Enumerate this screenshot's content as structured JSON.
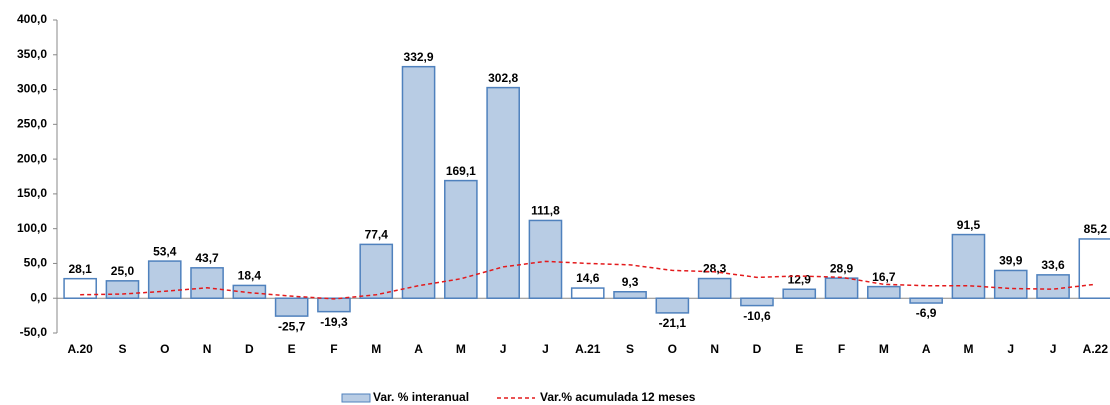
{
  "chart_data": {
    "type": "bar",
    "categories": [
      "A.20",
      "S",
      "O",
      "N",
      "D",
      "E",
      "F",
      "M",
      "A",
      "M",
      "J",
      "J",
      "A.21",
      "S",
      "O",
      "N",
      "D",
      "E",
      "F",
      "M",
      "A",
      "M",
      "J",
      "J",
      "A.22"
    ],
    "series": [
      {
        "name": "Var. % interanual",
        "type": "bar",
        "color": "#b8cce4",
        "stroke": "#4f81bd",
        "colors": [
          "#ffffff",
          "#b8cce4",
          "#b8cce4",
          "#b8cce4",
          "#b8cce4",
          "#b8cce4",
          "#b8cce4",
          "#b8cce4",
          "#b8cce4",
          "#b8cce4",
          "#b8cce4",
          "#b8cce4",
          "#ffffff",
          "#b8cce4",
          "#b8cce4",
          "#b8cce4",
          "#b8cce4",
          "#b8cce4",
          "#b8cce4",
          "#b8cce4",
          "#b8cce4",
          "#b8cce4",
          "#b8cce4",
          "#b8cce4",
          "#ffffff"
        ],
        "values": [
          28.1,
          25.0,
          53.4,
          43.7,
          18.4,
          -25.7,
          -19.3,
          77.4,
          332.9,
          169.1,
          302.8,
          111.8,
          14.6,
          9.3,
          -21.1,
          28.3,
          -10.6,
          12.9,
          28.9,
          16.7,
          -6.9,
          91.5,
          39.9,
          33.6,
          85.2
        ],
        "value_labels": [
          "28,1",
          "25,0",
          "53,4",
          "43,7",
          "18,4",
          "-25,7",
          "-19,3",
          "77,4",
          "332,9",
          "169,1",
          "302,8",
          "111,8",
          "14,6",
          "9,3",
          "-21,1",
          "28,3",
          "-10,6",
          "12,9",
          "28,9",
          "16,7",
          "-6,9",
          "91,5",
          "39,9",
          "33,6",
          "85,2"
        ]
      },
      {
        "name": "Var.% acumulada 12 meses",
        "type": "line",
        "color": "#e31a1c",
        "values": [
          5,
          6,
          10,
          15,
          8,
          3,
          -1,
          5,
          18,
          28,
          45,
          53,
          50,
          48,
          40,
          38,
          30,
          32,
          30,
          20,
          18,
          18,
          14,
          13,
          20
        ]
      }
    ],
    "ylim": [
      -50,
      400
    ],
    "yticks": [
      {
        "value": -50,
        "label": "-50,0"
      },
      {
        "value": 0,
        "label": "0,0"
      },
      {
        "value": 50,
        "label": "50,0"
      },
      {
        "value": 100,
        "label": "100,0"
      },
      {
        "value": 150,
        "label": "150,0"
      },
      {
        "value": 200,
        "label": "200,0"
      },
      {
        "value": 250,
        "label": "250,0"
      },
      {
        "value": 300,
        "label": "300,0"
      },
      {
        "value": 350,
        "label": "350,0"
      },
      {
        "value": 400,
        "label": "400,0"
      }
    ],
    "legend": "bottom"
  }
}
